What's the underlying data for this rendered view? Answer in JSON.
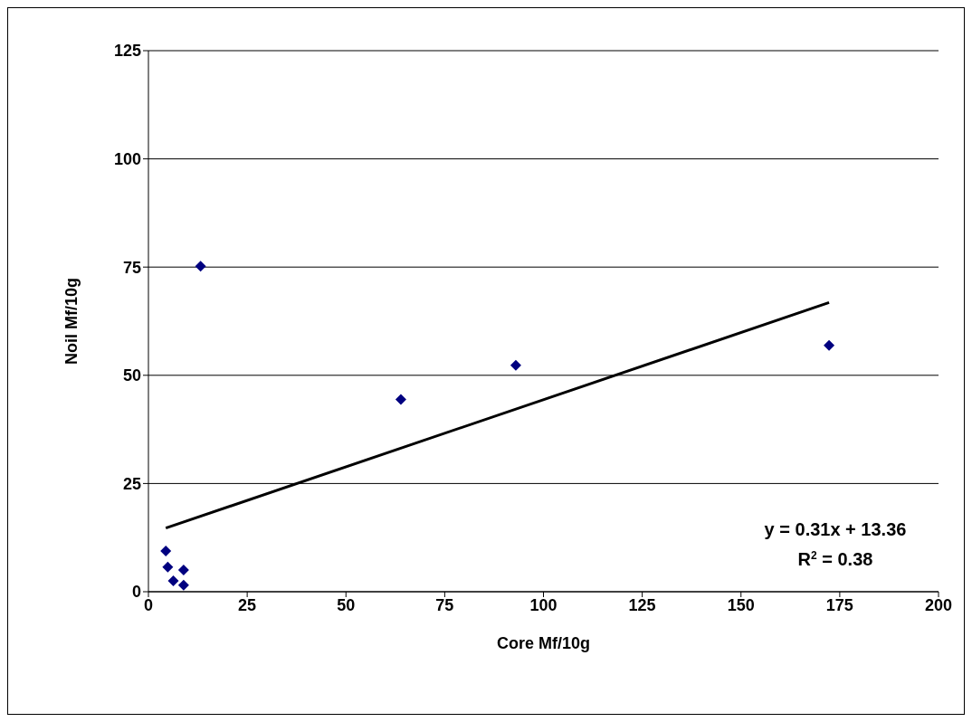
{
  "chart_data": {
    "type": "scatter",
    "xlabel": "Core Mf/10g",
    "ylabel": "Noil Mf/10g",
    "xlim": [
      0,
      200
    ],
    "xticks": [
      0,
      25,
      50,
      75,
      100,
      125,
      150,
      175,
      200
    ],
    "ylim": [
      0,
      125
    ],
    "yticks": [
      0,
      25,
      50,
      75,
      100,
      125
    ],
    "grid": "y",
    "series": [
      {
        "color": "#000080",
        "marker": "diamond",
        "x": [
          4.4,
          4.9,
          6.3,
          8.9,
          8.9,
          13.2,
          63.9,
          93,
          172.3
        ],
        "values": [
          9.4,
          5.7,
          2.5,
          5.0,
          1.5,
          75.2,
          44.4,
          52.3,
          56.9
        ]
      },
      {
        "type": "line",
        "color": "#000000",
        "marker": "none",
        "x": [
          4.4,
          172.3
        ],
        "values": [
          14.7,
          66.8
        ]
      }
    ],
    "annotations": [
      "y = 0.31x + 13.36",
      "R$^{2}$ = 0.38"
    ]
  }
}
